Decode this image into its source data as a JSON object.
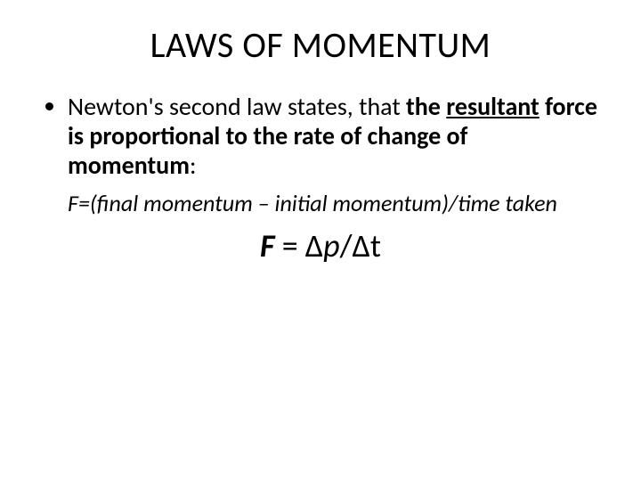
{
  "colors": {
    "background": "#ffffff",
    "text": "#000000"
  },
  "typography": {
    "font_family": "Calibri",
    "title_size_pt": 40,
    "body_size_pt": 28,
    "formula_line_size_pt": 26,
    "formula_main_size_pt": 36
  },
  "title": "LAWS OF MOMENTUM",
  "bullet": {
    "lead": "Newton's second law states, that ",
    "bold1": "the ",
    "bold_underlined": "resultant",
    "bold2": " force is proportional to the rate of change of momentum",
    "tail": ":"
  },
  "formula_text": "F=(final momentum – initial momentum)/time taken",
  "formula_main": {
    "F": "F",
    "eq": " = ",
    "dp": "Δp",
    "slash": "/",
    "dt": "Δt"
  }
}
